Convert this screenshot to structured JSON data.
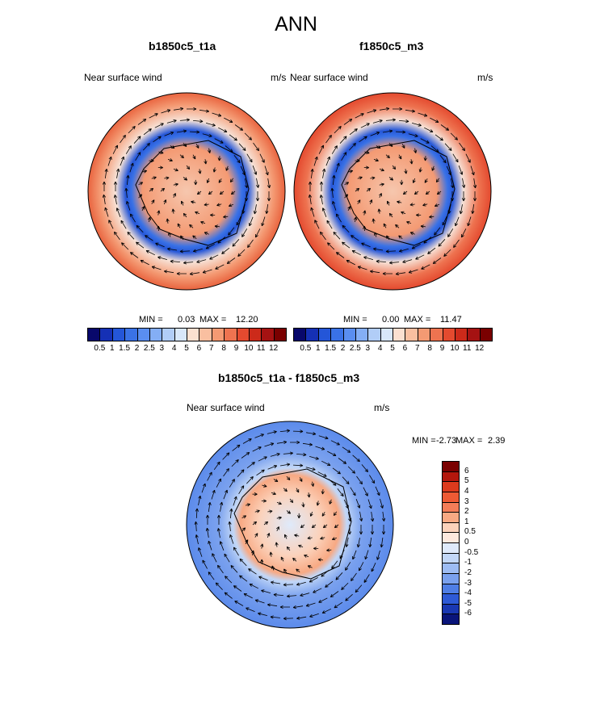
{
  "figure": {
    "title": "ANN",
    "panels": [
      {
        "title": "b1850c5_t1a",
        "left_label": "Near surface wind",
        "right_label": "m/s",
        "min_label": "MIN =",
        "min_value": "0.03",
        "max_label": "MAX =",
        "max_value": "12.20"
      },
      {
        "title": "f1850c5_m3",
        "left_label": "Near surface wind",
        "right_label": "m/s",
        "min_label": "MIN =",
        "min_value": "0.00",
        "max_label": "MAX =",
        "max_value": "11.47"
      }
    ],
    "diff": {
      "title": "b1850c5_t1a - f1850c5_m3",
      "left_label": "Near surface wind",
      "right_label": "m/s",
      "min_label": "MIN =",
      "min_value": "-2.73",
      "max_label": "MAX =",
      "max_value": "2.39"
    },
    "colorbar_abs": {
      "labels": [
        "0.5",
        "1",
        "1.5",
        "2",
        "2.5",
        "3",
        "4",
        "5",
        "6",
        "7",
        "8",
        "9",
        "10",
        "11",
        "12"
      ],
      "colors": [
        "#08086b",
        "#1530b5",
        "#2456d8",
        "#3a72e6",
        "#5a8ef0",
        "#84aef5",
        "#b1cdf7",
        "#d8e7fa",
        "#fbe0d0",
        "#f9bfa0",
        "#f49a73",
        "#ee7350",
        "#e44a2f",
        "#cc2a1a",
        "#a51212",
        "#7a0000"
      ]
    },
    "colorbar_diff": {
      "labels": [
        "6",
        "5",
        "4",
        "3",
        "2",
        "1",
        "0.5",
        "0",
        "-0.5",
        "-1",
        "-2",
        "-3",
        "-4",
        "-5",
        "-6"
      ],
      "colors": [
        "#7a0000",
        "#b3170d",
        "#dc3a1d",
        "#ee5a34",
        "#f47d58",
        "#f8a983",
        "#fbd2bb",
        "#fde9de",
        "#dfeafb",
        "#c2d7f7",
        "#9dbcf3",
        "#7aa1ee",
        "#4f7ee5",
        "#2e5ad6",
        "#1a38b2",
        "#0a157a"
      ]
    }
  }
}
